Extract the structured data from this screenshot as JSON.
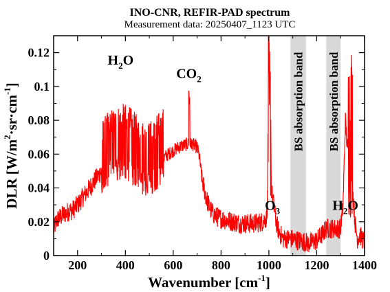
{
  "chart_data": {
    "type": "line",
    "title": "INO-CNR, REFIR-PAD spectrum",
    "subtitle": "Measurement data: 20250407_1123 UTC",
    "xlabel": {
      "base": "Wavenumber [cm",
      "sup": "-1",
      "tail": "]"
    },
    "ylabel": {
      "base": "DLR [W/m",
      "sup1": "2",
      "mid": "·sr·cm",
      "sup2": "-1",
      "tail": "]"
    },
    "xlim": [
      100,
      1400
    ],
    "ylim": [
      0,
      0.13
    ],
    "xticks": [
      200,
      400,
      600,
      800,
      1000,
      1200,
      1400
    ],
    "yticks": [
      0,
      0.02,
      0.04,
      0.06,
      0.08,
      0.1,
      0.12
    ],
    "xtick_labels": [
      "200",
      "400",
      "600",
      "800",
      "1000",
      "1200",
      "1400"
    ],
    "ytick_labels": [
      "0",
      "0.02",
      "0.04",
      "0.06",
      "0.08",
      "0.1",
      "0.12"
    ],
    "grid": false,
    "line_color": "#ff0000",
    "band_color": "#d9d9d9",
    "bands": [
      {
        "x0": 1090,
        "x1": 1155,
        "label": "BS absorption band"
      },
      {
        "x0": 1240,
        "x1": 1300,
        "label": "BS absorption band"
      }
    ],
    "annotations": [
      {
        "base": "H",
        "sub": "2",
        "tail": "O",
        "x": 380,
        "y": 0.113
      },
      {
        "base": "CO",
        "sub": "2",
        "tail": "",
        "x": 665,
        "y": 0.105
      },
      {
        "base": "O",
        "sub": "3",
        "tail": "",
        "x": 1015,
        "y": 0.027
      },
      {
        "base": "H",
        "sub": "2",
        "tail": "O",
        "x": 1320,
        "y": 0.027
      }
    ],
    "series": [
      {
        "x": [
          100,
          110,
          120,
          140,
          160,
          180,
          200,
          220,
          240,
          260,
          280,
          300,
          320,
          340,
          360,
          380,
          400,
          420,
          440,
          460,
          480,
          500,
          520,
          540,
          560,
          580,
          600,
          620,
          640,
          660,
          680,
          700,
          710,
          720,
          740,
          760,
          780,
          800,
          820,
          850,
          880,
          910,
          940,
          970,
          990,
          1000,
          1010,
          1020,
          1030,
          1040,
          1050,
          1060,
          1070,
          1085,
          1090,
          1155,
          1165,
          1180,
          1200,
          1220,
          1235,
          1240,
          1300,
          1310,
          1320,
          1330,
          1340,
          1350,
          1360,
          1370,
          1380,
          1390,
          1400
        ],
        "y": [
          0.015,
          0.02,
          0.022,
          0.024,
          0.026,
          0.027,
          0.03,
          0.034,
          0.038,
          0.042,
          0.046,
          0.05,
          0.054,
          0.057,
          0.059,
          0.06,
          0.06,
          0.058,
          0.055,
          0.052,
          0.05,
          0.05,
          0.052,
          0.055,
          0.058,
          0.06,
          0.062,
          0.064,
          0.065,
          0.066,
          0.066,
          0.064,
          0.058,
          0.045,
          0.033,
          0.026,
          0.023,
          0.022,
          0.021,
          0.02,
          0.019,
          0.019,
          0.019,
          0.02,
          0.022,
          0.05,
          0.04,
          0.03,
          0.02,
          0.015,
          0.012,
          0.01,
          0.01,
          0.01,
          0.01,
          0.008,
          0.007,
          0.008,
          0.009,
          0.012,
          0.015,
          0.016,
          0.016,
          0.03,
          0.08,
          0.06,
          0.1,
          0.04,
          0.02,
          0.01,
          0.012,
          0.01,
          0.008
        ]
      }
    ]
  }
}
